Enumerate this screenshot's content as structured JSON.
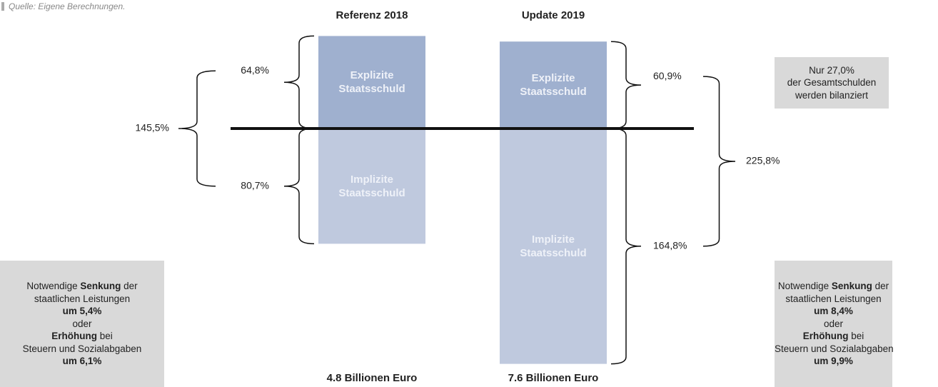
{
  "chart_data": {
    "type": "bar",
    "source": "Quelle: Eigene Berechnungen.",
    "categories": [
      "Referenz 2018",
      "Update 2019"
    ],
    "series": [
      {
        "name": "Explizite Staatsschuld",
        "color": "#9fb0cf",
        "values": [
          64.8,
          60.9
        ],
        "value_labels": [
          "64,8%",
          "60,9%"
        ]
      },
      {
        "name": "Implizite Staatsschuld",
        "color": "#bfc9de",
        "values": [
          80.7,
          164.8
        ],
        "value_labels": [
          "80,7%",
          "164,8%"
        ]
      }
    ],
    "totals": [
      145.5,
      225.8
    ],
    "total_labels": [
      "145,5%",
      "225,8%"
    ],
    "footers": [
      "4.8 Billionen Euro",
      "7.6 Billionen Euro"
    ],
    "notes": [
      {
        "lines": [
          [
            {
              "text": "Nur 27,0%"
            }
          ],
          [
            {
              "text": "der Gesamtschulden"
            }
          ],
          [
            {
              "text": "werden bilanziert"
            }
          ]
        ]
      },
      {
        "lines": [
          [
            {
              "text": "Notwendige "
            },
            {
              "text": "Senkung",
              "bold": true
            },
            {
              "text": " der"
            }
          ],
          [
            {
              "text": "staatlichen Leistungen"
            }
          ],
          [
            {
              "text": "um 5,4%",
              "bold": true
            }
          ],
          [
            {
              "text": "oder"
            }
          ],
          [
            {
              "text": "Erhöhung",
              "bold": true
            },
            {
              "text": " bei"
            }
          ],
          [
            {
              "text": "Steuern und Sozialabgaben"
            }
          ],
          [
            {
              "text": "um 6,1%",
              "bold": true
            }
          ]
        ]
      },
      {
        "lines": [
          [
            {
              "text": "Notwendige "
            },
            {
              "text": "Senkung",
              "bold": true
            },
            {
              "text": " der"
            }
          ],
          [
            {
              "text": "staatlichen Leistungen"
            }
          ],
          [
            {
              "text": "um 8,4%",
              "bold": true
            }
          ],
          [
            {
              "text": "oder"
            }
          ],
          [
            {
              "text": "Erhöhung",
              "bold": true
            },
            {
              "text": " bei"
            }
          ],
          [
            {
              "text": "Steuern und Sozialabgaben"
            }
          ],
          [
            {
              "text": "um 9,9%",
              "bold": true
            }
          ]
        ]
      }
    ]
  }
}
